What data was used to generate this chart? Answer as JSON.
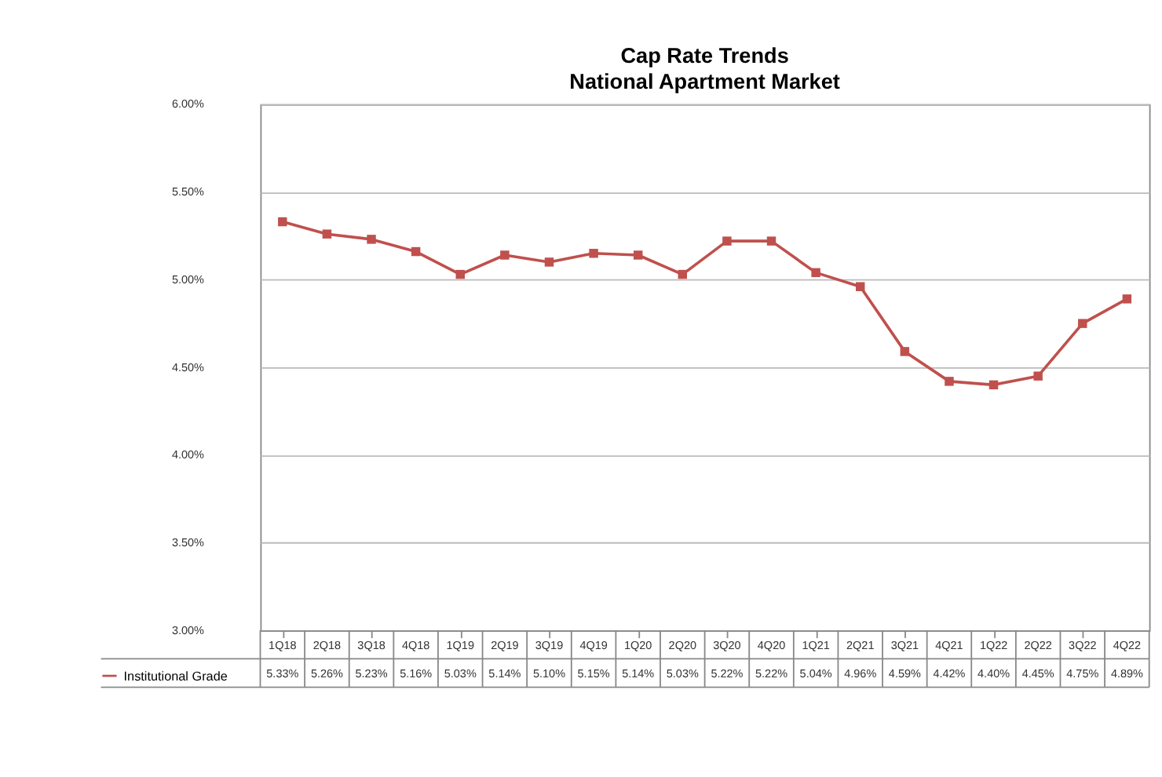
{
  "chart_data": {
    "type": "line",
    "title": "Cap Rate Trends",
    "subtitle": "National Apartment Market",
    "categories": [
      "1Q18",
      "2Q18",
      "3Q18",
      "4Q18",
      "1Q19",
      "2Q19",
      "3Q19",
      "4Q19",
      "1Q20",
      "2Q20",
      "3Q20",
      "4Q20",
      "1Q21",
      "2Q21",
      "3Q21",
      "4Q21",
      "1Q22",
      "2Q22",
      "3Q22",
      "4Q22"
    ],
    "series": [
      {
        "name": "Institutional Grade",
        "color": "#c0504d",
        "values": [
          5.33,
          5.26,
          5.23,
          5.16,
          5.03,
          5.14,
          5.1,
          5.15,
          5.14,
          5.03,
          5.22,
          5.22,
          5.04,
          4.96,
          4.59,
          4.42,
          4.4,
          4.45,
          4.75,
          4.89
        ],
        "value_labels": [
          "5.33%",
          "5.26%",
          "5.23%",
          "5.16%",
          "5.03%",
          "5.14%",
          "5.10%",
          "5.15%",
          "5.14%",
          "5.03%",
          "5.22%",
          "5.22%",
          "5.04%",
          "4.96%",
          "4.59%",
          "4.42%",
          "4.40%",
          "4.45%",
          "4.75%",
          "4.89%"
        ]
      }
    ],
    "ylim": [
      3.0,
      6.0
    ],
    "yticks": [
      {
        "value": 3.0,
        "label": "3.00%"
      },
      {
        "value": 3.5,
        "label": "3.50%"
      },
      {
        "value": 4.0,
        "label": "4.00%"
      },
      {
        "value": 4.5,
        "label": "4.50%"
      },
      {
        "value": 5.0,
        "label": "5.00%"
      },
      {
        "value": 5.5,
        "label": "5.50%"
      },
      {
        "value": 6.0,
        "label": "6.00%"
      }
    ],
    "grid": "y",
    "legend": "bottom left",
    "marker": "square",
    "line_style": "solid"
  }
}
